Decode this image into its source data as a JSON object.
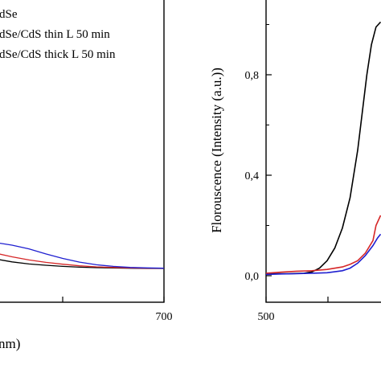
{
  "chart_data": [
    {
      "type": "line",
      "title": "",
      "xlabel": "nm)",
      "ylabel": "",
      "xlim": [
        580,
        700
      ],
      "x_ticks": [
        {
          "value": 700,
          "label": "700"
        }
      ],
      "legend": {
        "placement": "top-left",
        "entries": [
          "dSe",
          "dSe/CdS thin L 50 min",
          "dSe/CdS thick L 50 min"
        ]
      },
      "series": [
        {
          "name": "dSe",
          "color": "#000000",
          "x": [
            580,
            590,
            600,
            610,
            620,
            630,
            640,
            650,
            660,
            670,
            680,
            690,
            700
          ],
          "y": [
            0.104,
            0.082,
            0.066,
            0.055,
            0.047,
            0.042,
            0.038,
            0.035,
            0.033,
            0.032,
            0.031,
            0.03,
            0.03
          ]
        },
        {
          "name": "dSe/CdS thin L 50 min",
          "color": "#d62728",
          "x": [
            580,
            590,
            600,
            610,
            620,
            630,
            640,
            650,
            660,
            670,
            680,
            690,
            700
          ],
          "y": [
            0.14,
            0.108,
            0.088,
            0.074,
            0.062,
            0.053,
            0.046,
            0.04,
            0.036,
            0.034,
            0.032,
            0.031,
            0.031
          ]
        },
        {
          "name": "dSe/CdS thick L 50 min",
          "color": "#1f1fd0",
          "x": [
            580,
            590,
            600,
            610,
            620,
            630,
            640,
            650,
            660,
            670,
            680,
            690,
            700
          ],
          "y": [
            0.185,
            0.15,
            0.128,
            0.118,
            0.104,
            0.085,
            0.068,
            0.054,
            0.044,
            0.038,
            0.034,
            0.032,
            0.031
          ]
        }
      ]
    },
    {
      "type": "line",
      "title": "",
      "xlabel": "",
      "ylabel": "Florouscence (Intensity (a.u.))",
      "xlim": [
        500,
        575
      ],
      "ylim": [
        -0.05,
        1.1
      ],
      "x_ticks": [
        {
          "value": 500,
          "label": "500"
        }
      ],
      "y_ticks": [
        {
          "value": 0.0,
          "label": "0,0"
        },
        {
          "value": 0.4,
          "label": "0,4"
        },
        {
          "value": 0.8,
          "label": "0,8"
        }
      ],
      "series": [
        {
          "name": "",
          "color": "#000000",
          "x": [
            500,
            515,
            525,
            530,
            535,
            540,
            545,
            550,
            555,
            560,
            563,
            566,
            569,
            572,
            575
          ],
          "y": [
            0.008,
            0.008,
            0.01,
            0.015,
            0.03,
            0.06,
            0.11,
            0.19,
            0.31,
            0.5,
            0.65,
            0.8,
            0.92,
            0.99,
            1.01
          ]
        },
        {
          "name": "",
          "color": "#d62728",
          "x": [
            500,
            510,
            520,
            530,
            540,
            550,
            555,
            560,
            565,
            570,
            572,
            575
          ],
          "y": [
            0.01,
            0.014,
            0.018,
            0.02,
            0.025,
            0.035,
            0.045,
            0.06,
            0.09,
            0.14,
            0.2,
            0.24
          ]
        },
        {
          "name": "",
          "color": "#1f1fd0",
          "x": [
            500,
            510,
            520,
            530,
            540,
            550,
            555,
            560,
            565,
            570,
            573,
            575
          ],
          "y": [
            0.005,
            0.007,
            0.008,
            0.01,
            0.012,
            0.02,
            0.03,
            0.05,
            0.08,
            0.12,
            0.15,
            0.165
          ]
        }
      ]
    }
  ]
}
